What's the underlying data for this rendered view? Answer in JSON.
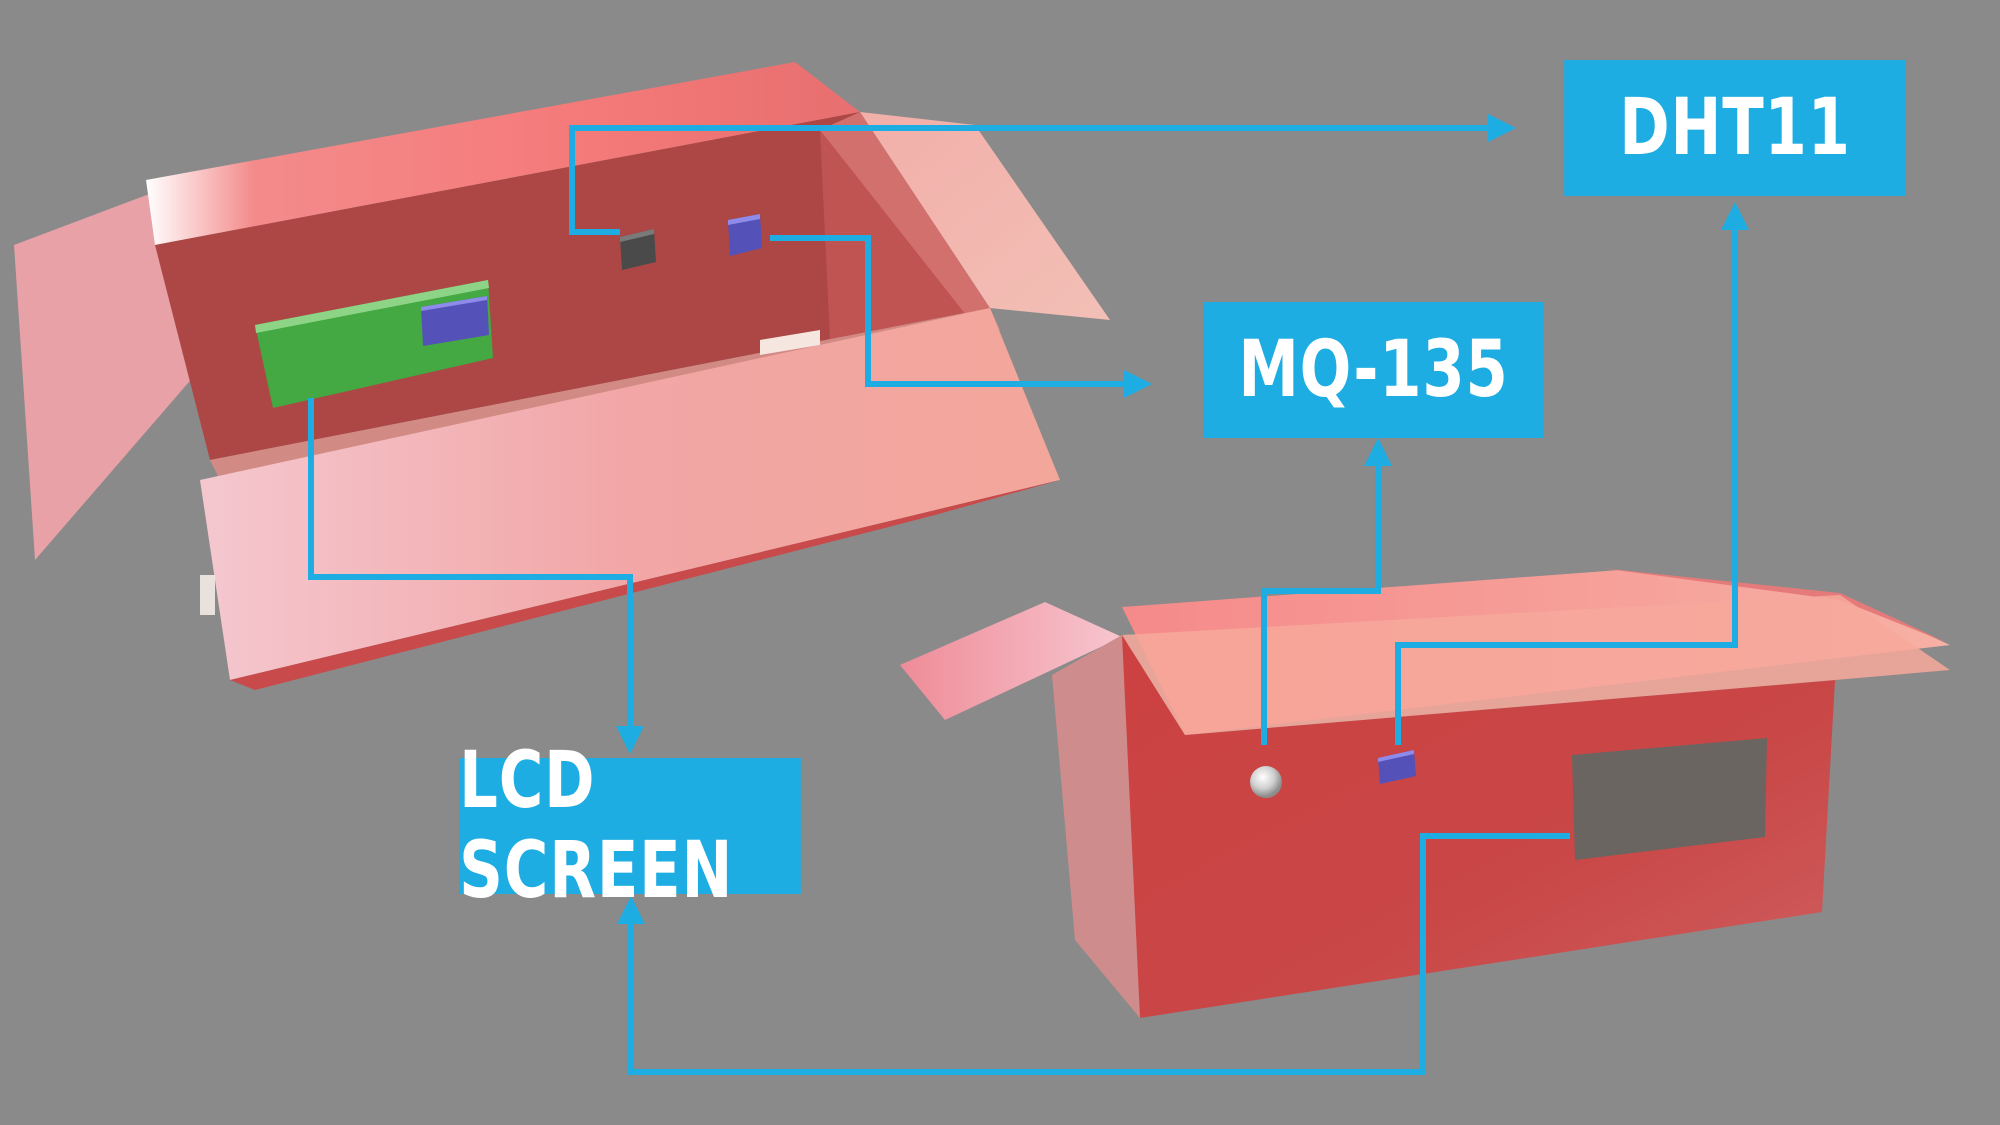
{
  "labels": {
    "dht11": "DHT11",
    "mq135": "MQ-135",
    "lcd": "LCD SCREEN"
  },
  "colors": {
    "background": "#8a8a8a",
    "label_fill": "#1eade2",
    "connector": "#1eade2",
    "box_outer": "#f29a9a",
    "box_inner": "#ad4745",
    "box_front": "#c94545",
    "pcb": "#44a843",
    "sensor_chip": "#5451b8",
    "dark_sensor": "#4a4a4a",
    "lcd_panel": "#6a6560"
  }
}
